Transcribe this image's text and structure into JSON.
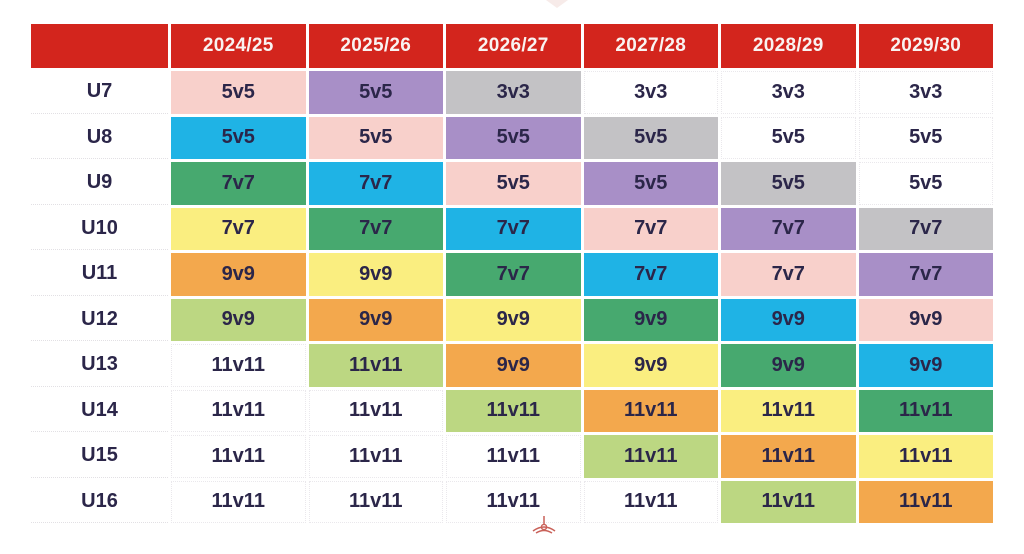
{
  "palette": {
    "header_red": "#d3251d",
    "header_text": "#f9f3f1",
    "text_navy": "#2b2649",
    "pink": "#f8d0cb",
    "purple": "#a88fc7",
    "gray": "#c3c2c5",
    "blue": "#1fb3e5",
    "green": "#47a96f",
    "yellow": "#faee80",
    "orange": "#f3a84d",
    "lightgreen": "#bcd782",
    "white": "#ffffff"
  },
  "icons": {
    "top_decoration": "cropped-red-logo-tip",
    "bottom_decoration": "red-crest-outline-icon"
  },
  "chart_data": {
    "type": "table",
    "title": "",
    "columns": [
      "",
      "2024/25",
      "2025/26",
      "2026/27",
      "2027/28",
      "2028/29",
      "2029/30"
    ],
    "rows": [
      {
        "label": "U7",
        "cells": [
          {
            "text": "5v5",
            "color": "pink"
          },
          {
            "text": "5v5",
            "color": "purple"
          },
          {
            "text": "3v3",
            "color": "gray"
          },
          {
            "text": "3v3",
            "color": "white"
          },
          {
            "text": "3v3",
            "color": "white"
          },
          {
            "text": "3v3",
            "color": "white"
          }
        ]
      },
      {
        "label": "U8",
        "cells": [
          {
            "text": "5v5",
            "color": "blue"
          },
          {
            "text": "5v5",
            "color": "pink"
          },
          {
            "text": "5v5",
            "color": "purple"
          },
          {
            "text": "5v5",
            "color": "gray"
          },
          {
            "text": "5v5",
            "color": "white"
          },
          {
            "text": "5v5",
            "color": "white"
          }
        ]
      },
      {
        "label": "U9",
        "cells": [
          {
            "text": "7v7",
            "color": "green"
          },
          {
            "text": "7v7",
            "color": "blue"
          },
          {
            "text": "5v5",
            "color": "pink"
          },
          {
            "text": "5v5",
            "color": "purple"
          },
          {
            "text": "5v5",
            "color": "gray"
          },
          {
            "text": "5v5",
            "color": "white"
          }
        ]
      },
      {
        "label": "U10",
        "cells": [
          {
            "text": "7v7",
            "color": "yellow"
          },
          {
            "text": "7v7",
            "color": "green"
          },
          {
            "text": "7v7",
            "color": "blue"
          },
          {
            "text": "7v7",
            "color": "pink"
          },
          {
            "text": "7v7",
            "color": "purple"
          },
          {
            "text": "7v7",
            "color": "gray"
          }
        ]
      },
      {
        "label": "U11",
        "cells": [
          {
            "text": "9v9",
            "color": "orange"
          },
          {
            "text": "9v9",
            "color": "yellow"
          },
          {
            "text": "7v7",
            "color": "green"
          },
          {
            "text": "7v7",
            "color": "blue"
          },
          {
            "text": "7v7",
            "color": "pink"
          },
          {
            "text": "7v7",
            "color": "purple"
          }
        ]
      },
      {
        "label": "U12",
        "cells": [
          {
            "text": "9v9",
            "color": "lightgreen"
          },
          {
            "text": "9v9",
            "color": "orange"
          },
          {
            "text": "9v9",
            "color": "yellow"
          },
          {
            "text": "9v9",
            "color": "green"
          },
          {
            "text": "9v9",
            "color": "blue"
          },
          {
            "text": "9v9",
            "color": "pink"
          }
        ]
      },
      {
        "label": "U13",
        "cells": [
          {
            "text": "11v11",
            "color": "white"
          },
          {
            "text": "11v11",
            "color": "lightgreen"
          },
          {
            "text": "9v9",
            "color": "orange"
          },
          {
            "text": "9v9",
            "color": "yellow"
          },
          {
            "text": "9v9",
            "color": "green"
          },
          {
            "text": "9v9",
            "color": "blue"
          }
        ]
      },
      {
        "label": "U14",
        "cells": [
          {
            "text": "11v11",
            "color": "white"
          },
          {
            "text": "11v11",
            "color": "white"
          },
          {
            "text": "11v11",
            "color": "lightgreen"
          },
          {
            "text": "11v11",
            "color": "orange"
          },
          {
            "text": "11v11",
            "color": "yellow"
          },
          {
            "text": "11v11",
            "color": "green"
          }
        ]
      },
      {
        "label": "U15",
        "cells": [
          {
            "text": "11v11",
            "color": "white"
          },
          {
            "text": "11v11",
            "color": "white"
          },
          {
            "text": "11v11",
            "color": "white"
          },
          {
            "text": "11v11",
            "color": "lightgreen"
          },
          {
            "text": "11v11",
            "color": "orange"
          },
          {
            "text": "11v11",
            "color": "yellow"
          }
        ]
      },
      {
        "label": "U16",
        "cells": [
          {
            "text": "11v11",
            "color": "white"
          },
          {
            "text": "11v11",
            "color": "white"
          },
          {
            "text": "11v11",
            "color": "white"
          },
          {
            "text": "11v11",
            "color": "white"
          },
          {
            "text": "11v11",
            "color": "lightgreen"
          },
          {
            "text": "11v11",
            "color": "orange"
          }
        ]
      }
    ]
  }
}
